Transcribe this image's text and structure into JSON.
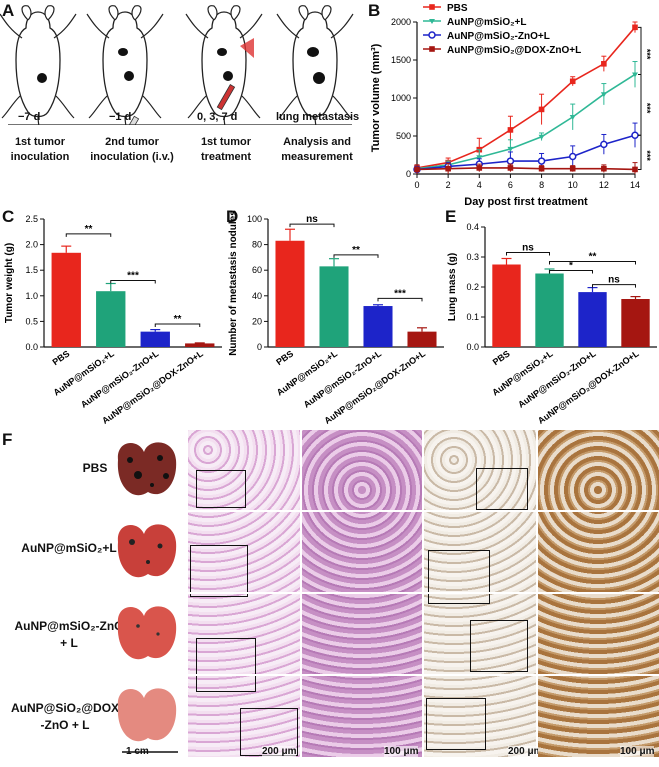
{
  "panel_letters": {
    "a": "A",
    "b": "B",
    "c": "C",
    "d": "D",
    "e": "E",
    "f": "F"
  },
  "panelA": {
    "timepoints": [
      "−7 d",
      "−1 d",
      "0, 3, 7 d",
      "lung metastasis"
    ],
    "steps": [
      [
        "1st tumor",
        "inoculation"
      ],
      [
        "2nd tumor",
        "inoculation (i.v.)"
      ],
      [
        "1st tumor",
        "treatment"
      ],
      [
        "Analysis and",
        "measurement"
      ]
    ]
  },
  "legend": [
    "PBS",
    "AuNP@mSiO₂+L",
    "AuNP@mSiO₂-ZnO+L",
    "AuNP@mSiO₂@DOX-ZnO+L"
  ],
  "colors": {
    "red": "#e8261d",
    "green": "#1fa37a",
    "teal": "#2fb896",
    "blue": "#1d24c9",
    "darkred": "#a51611"
  },
  "sig_B": [
    "***",
    "***",
    "***"
  ],
  "chart_data": [
    {
      "type": "line",
      "xlabel": "Day post first treatment",
      "ylabel": "Tumor volume (mm³)",
      "x": [
        0,
        2,
        4,
        6,
        8,
        10,
        12,
        14
      ],
      "xlim": [
        0,
        14
      ],
      "ylim": [
        0,
        2000
      ],
      "yticks": [
        0,
        500,
        1000,
        1500,
        2000
      ],
      "series": [
        {
          "name": "PBS",
          "values": [
            80,
            150,
            320,
            580,
            850,
            1220,
            1450,
            1930
          ],
          "err": [
            40,
            60,
            150,
            180,
            200,
            60,
            100,
            70
          ]
        },
        {
          "name": "AuNP@mSiO₂+L",
          "values": [
            70,
            120,
            220,
            330,
            490,
            750,
            1050,
            1310
          ],
          "err": [
            30,
            50,
            100,
            120,
            50,
            170,
            140,
            170
          ]
        },
        {
          "name": "AuNP@mSiO₂-ZnO+L",
          "values": [
            60,
            100,
            130,
            170,
            170,
            230,
            390,
            510
          ],
          "err": [
            40,
            50,
            70,
            120,
            100,
            140,
            130,
            160
          ]
        },
        {
          "name": "AuNP@mSiO₂@DOX-ZnO+L",
          "values": [
            60,
            70,
            80,
            80,
            70,
            70,
            70,
            60
          ],
          "err": [
            60,
            70,
            50,
            50,
            40,
            40,
            50,
            90
          ]
        }
      ]
    },
    {
      "type": "bar",
      "ylabel": "Tumor weight (g)",
      "categories": [
        "PBS",
        "AuNP@mSiO₂+L",
        "AuNP@mSiO₂-ZnO+L",
        "AuNP@mSiO₂@DOX-ZnO+L"
      ],
      "values": [
        1.84,
        1.09,
        0.3,
        0.07
      ],
      "err": [
        0.13,
        0.15,
        0.04,
        0.01
      ],
      "ylim": [
        0,
        2.5
      ],
      "yticks": [
        0.0,
        0.5,
        1.0,
        1.5,
        2.0,
        2.5
      ],
      "sig": [
        {
          "a": 0,
          "b": 1,
          "label": "**",
          "y": 2.21
        },
        {
          "a": 1,
          "b": 2,
          "label": "***",
          "y": 1.3
        },
        {
          "a": 2,
          "b": 3,
          "label": "**",
          "y": 0.45
        }
      ]
    },
    {
      "type": "bar",
      "ylabel": "Number of metastasis nodules",
      "categories": [
        "PBS",
        "AuNP@mSiO₂+L",
        "AuNP@mSiO₂-ZnO+L",
        "AuNP@mSiO₂@DOX-ZnO+L"
      ],
      "values": [
        83,
        63,
        32,
        12
      ],
      "err": [
        9,
        6,
        1,
        3
      ],
      "ylim": [
        0,
        100
      ],
      "yticks": [
        0,
        20,
        40,
        60,
        80,
        100
      ],
      "sig": [
        {
          "a": 0,
          "b": 1,
          "label": "ns",
          "y": 96
        },
        {
          "a": 1,
          "b": 2,
          "label": "**",
          "y": 72
        },
        {
          "a": 2,
          "b": 3,
          "label": "***",
          "y": 38
        }
      ]
    },
    {
      "type": "bar",
      "ylabel": "Lung mass (g)",
      "categories": [
        "PBS",
        "AuNP@mSiO₂+L",
        "AuNP@mSiO₂-ZnO+L",
        "AuNP@mSiO₂@DOX-ZnO+L"
      ],
      "values": [
        0.275,
        0.245,
        0.183,
        0.16
      ],
      "err": [
        0.02,
        0.015,
        0.015,
        0.008
      ],
      "ylim": [
        0,
        0.4
      ],
      "yticks": [
        0.0,
        0.1,
        0.2,
        0.3,
        0.4
      ],
      "sig": [
        {
          "a": 0,
          "b": 1,
          "label": "ns",
          "y": 0.315
        },
        {
          "a": 1,
          "b": 3,
          "label": "**",
          "y": 0.285
        },
        {
          "a": 1,
          "b": 2,
          "label": "*",
          "y": 0.255
        },
        {
          "a": 2,
          "b": 3,
          "label": "ns",
          "y": 0.208
        }
      ]
    }
  ],
  "panelF": {
    "rows": [
      [
        "PBS"
      ],
      [
        "AuNP@mSiO₂+L"
      ],
      [
        "AuNP@mSiO₂-ZnO",
        "+ L"
      ],
      [
        "AuNP@SiO₂@DOX",
        "-ZnO + L"
      ]
    ],
    "scale_lung": "1 cm",
    "scale_200": "200 μm",
    "scale_100": "100 μm"
  }
}
